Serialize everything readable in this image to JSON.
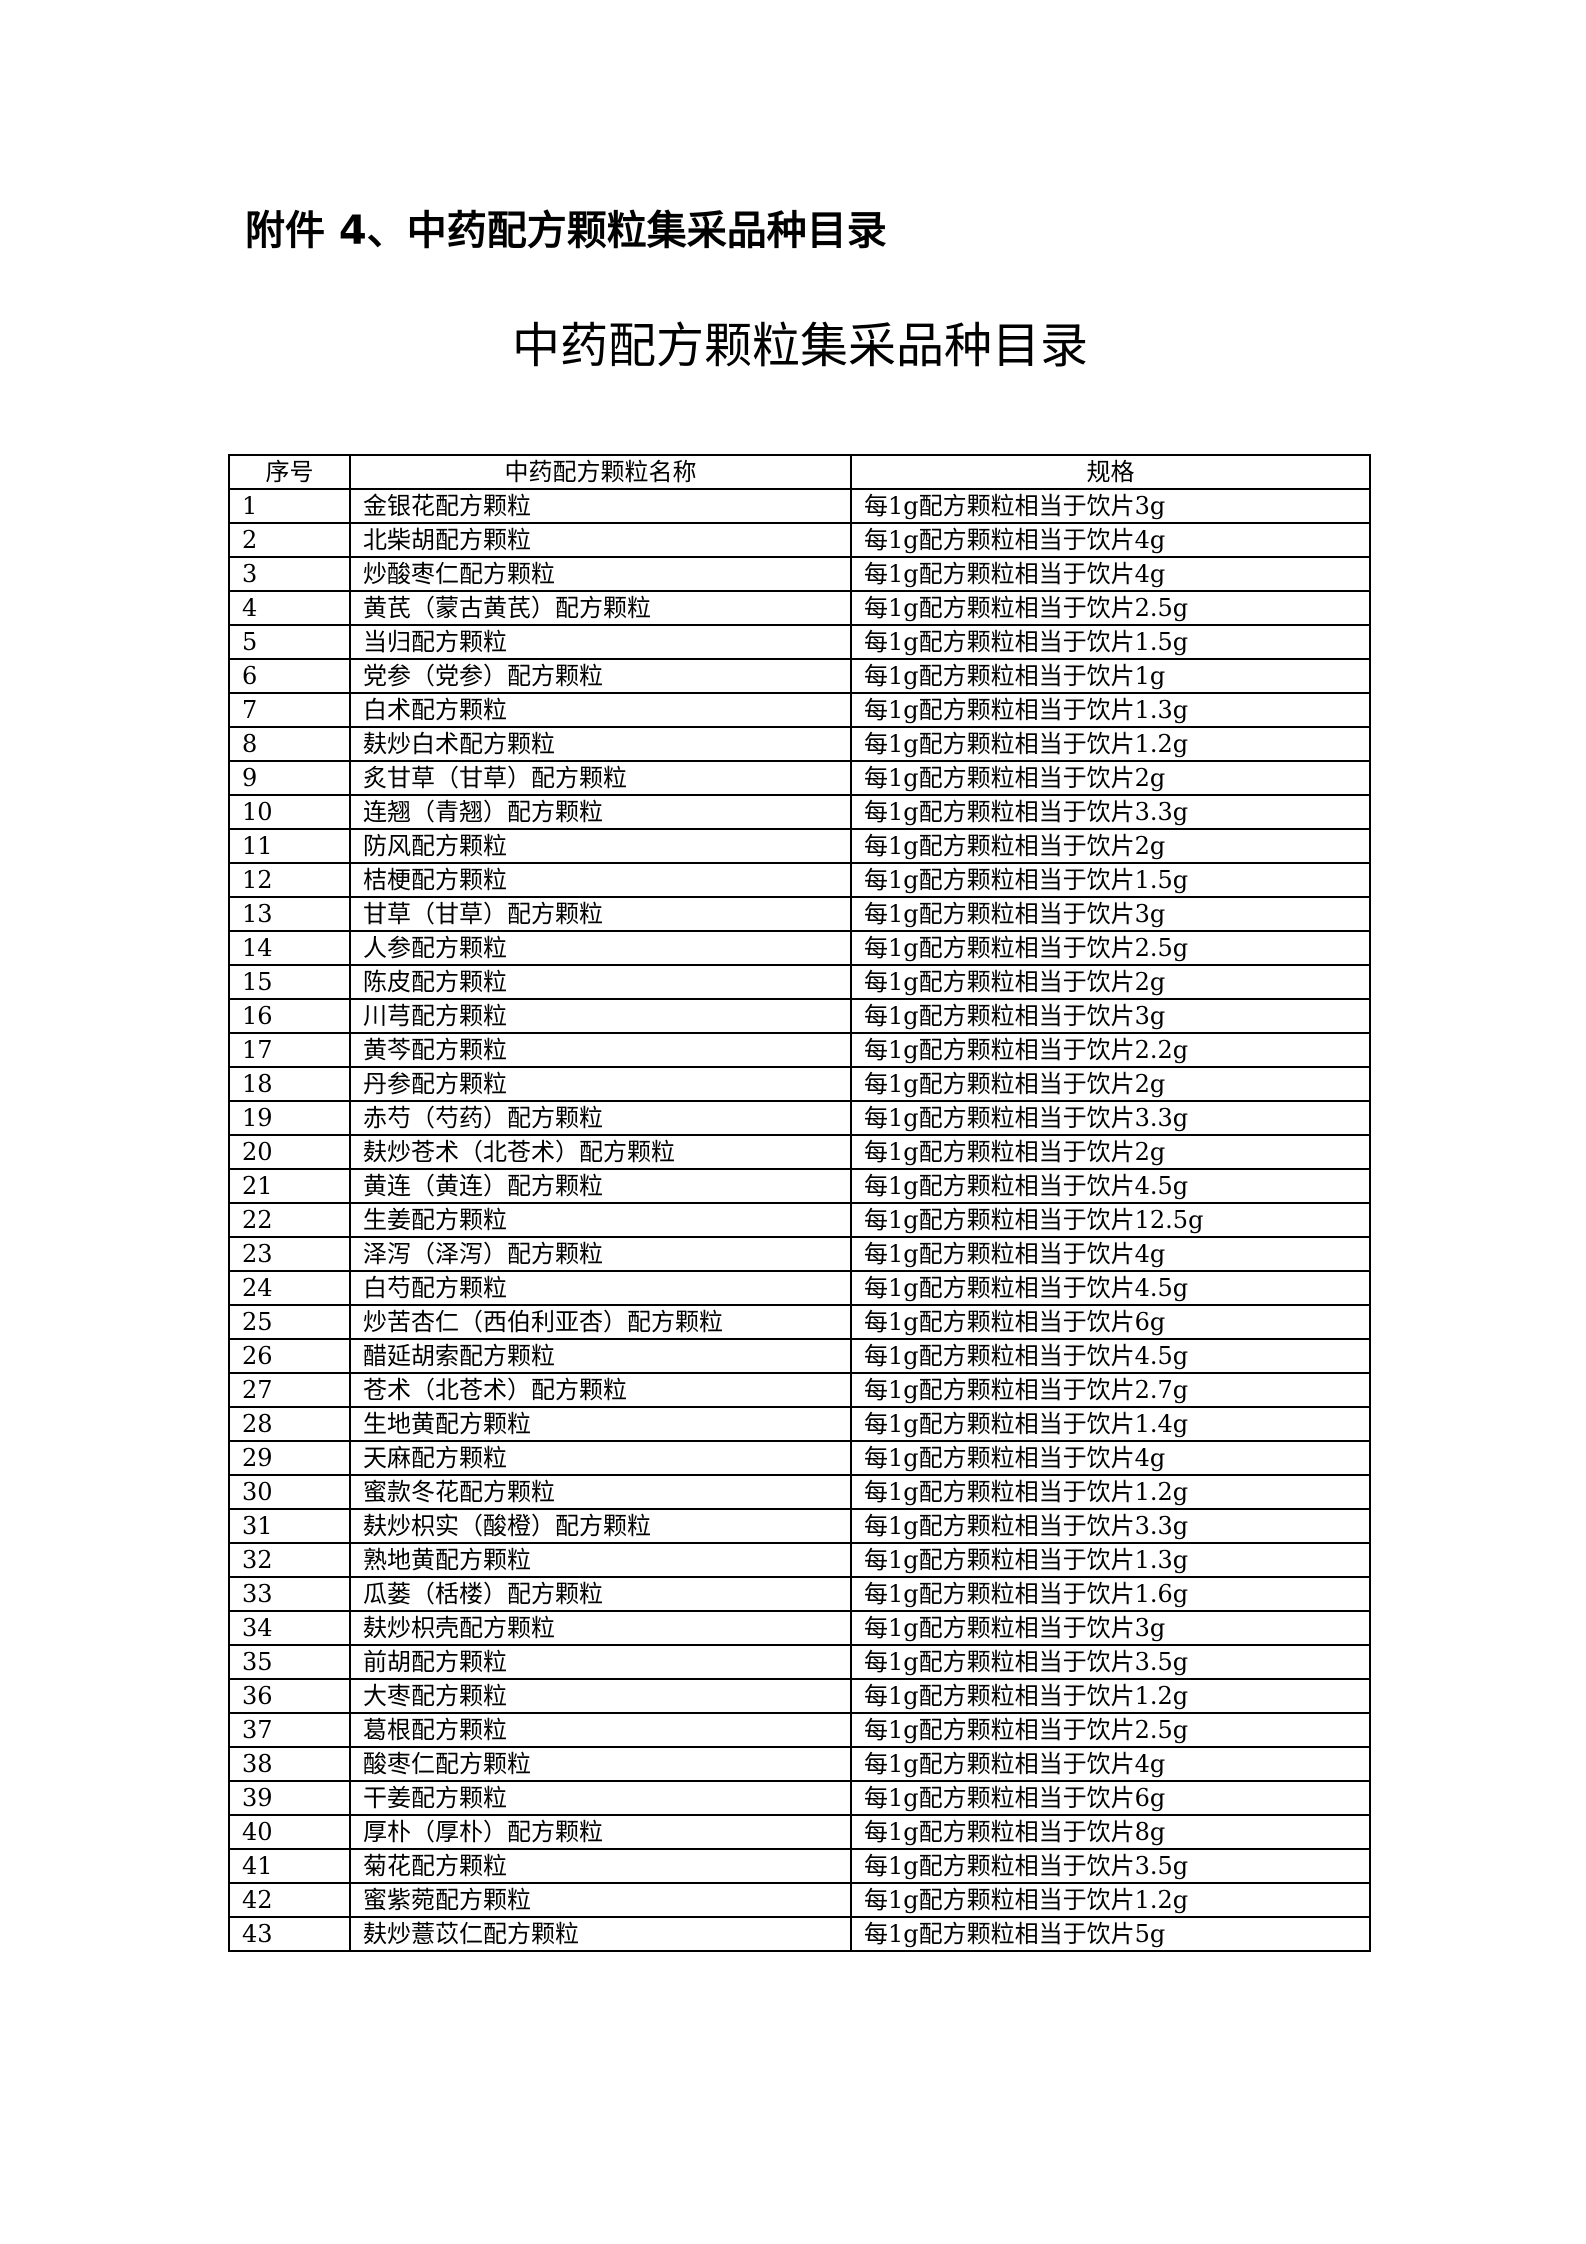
{
  "attachment_heading": "附件 4、中药配方颗粒集采品种目录",
  "title": "中药配方颗粒集采品种目录",
  "table": {
    "headers": [
      "序号",
      "中药配方颗粒名称",
      "规格"
    ],
    "rows": [
      [
        "1",
        "金银花配方颗粒",
        "每1g配方颗粒相当于饮片3g"
      ],
      [
        "2",
        "北柴胡配方颗粒",
        "每1g配方颗粒相当于饮片4g"
      ],
      [
        "3",
        "炒酸枣仁配方颗粒",
        "每1g配方颗粒相当于饮片4g"
      ],
      [
        "4",
        "黄芪（蒙古黄芪）配方颗粒",
        "每1g配方颗粒相当于饮片2.5g"
      ],
      [
        "5",
        "当归配方颗粒",
        "每1g配方颗粒相当于饮片1.5g"
      ],
      [
        "6",
        "党参（党参）配方颗粒",
        "每1g配方颗粒相当于饮片1g"
      ],
      [
        "7",
        "白术配方颗粒",
        "每1g配方颗粒相当于饮片1.3g"
      ],
      [
        "8",
        "麸炒白术配方颗粒",
        "每1g配方颗粒相当于饮片1.2g"
      ],
      [
        "9",
        "炙甘草（甘草）配方颗粒",
        "每1g配方颗粒相当于饮片2g"
      ],
      [
        "10",
        "连翘（青翘）配方颗粒",
        "每1g配方颗粒相当于饮片3.3g"
      ],
      [
        "11",
        "防风配方颗粒",
        "每1g配方颗粒相当于饮片2g"
      ],
      [
        "12",
        "桔梗配方颗粒",
        "每1g配方颗粒相当于饮片1.5g"
      ],
      [
        "13",
        "甘草（甘草）配方颗粒",
        "每1g配方颗粒相当于饮片3g"
      ],
      [
        "14",
        "人参配方颗粒",
        "每1g配方颗粒相当于饮片2.5g"
      ],
      [
        "15",
        "陈皮配方颗粒",
        "每1g配方颗粒相当于饮片2g"
      ],
      [
        "16",
        "川芎配方颗粒",
        "每1g配方颗粒相当于饮片3g"
      ],
      [
        "17",
        "黄芩配方颗粒",
        "每1g配方颗粒相当于饮片2.2g"
      ],
      [
        "18",
        "丹参配方颗粒",
        "每1g配方颗粒相当于饮片2g"
      ],
      [
        "19",
        "赤芍（芍药）配方颗粒",
        "每1g配方颗粒相当于饮片3.3g"
      ],
      [
        "20",
        "麸炒苍术（北苍术）配方颗粒",
        "每1g配方颗粒相当于饮片2g"
      ],
      [
        "21",
        "黄连（黄连）配方颗粒",
        "每1g配方颗粒相当于饮片4.5g"
      ],
      [
        "22",
        "生姜配方颗粒",
        "每1g配方颗粒相当于饮片12.5g"
      ],
      [
        "23",
        "泽泻（泽泻）配方颗粒",
        "每1g配方颗粒相当于饮片4g"
      ],
      [
        "24",
        "白芍配方颗粒",
        "每1g配方颗粒相当于饮片4.5g"
      ],
      [
        "25",
        "炒苦杏仁（西伯利亚杏）配方颗粒",
        "每1g配方颗粒相当于饮片6g"
      ],
      [
        "26",
        "醋延胡索配方颗粒",
        "每1g配方颗粒相当于饮片4.5g"
      ],
      [
        "27",
        "苍术（北苍术）配方颗粒",
        "每1g配方颗粒相当于饮片2.7g"
      ],
      [
        "28",
        "生地黄配方颗粒",
        "每1g配方颗粒相当于饮片1.4g"
      ],
      [
        "29",
        "天麻配方颗粒",
        "每1g配方颗粒相当于饮片4g"
      ],
      [
        "30",
        "蜜款冬花配方颗粒",
        "每1g配方颗粒相当于饮片1.2g"
      ],
      [
        "31",
        "麸炒枳实（酸橙）配方颗粒",
        "每1g配方颗粒相当于饮片3.3g"
      ],
      [
        "32",
        "熟地黄配方颗粒",
        "每1g配方颗粒相当于饮片1.3g"
      ],
      [
        "33",
        "瓜蒌（栝楼）配方颗粒",
        "每1g配方颗粒相当于饮片1.6g"
      ],
      [
        "34",
        "麸炒枳壳配方颗粒",
        "每1g配方颗粒相当于饮片3g"
      ],
      [
        "35",
        "前胡配方颗粒",
        "每1g配方颗粒相当于饮片3.5g"
      ],
      [
        "36",
        "大枣配方颗粒",
        "每1g配方颗粒相当于饮片1.2g"
      ],
      [
        "37",
        "葛根配方颗粒",
        "每1g配方颗粒相当于饮片2.5g"
      ],
      [
        "38",
        "酸枣仁配方颗粒",
        "每1g配方颗粒相当于饮片4g"
      ],
      [
        "39",
        "干姜配方颗粒",
        "每1g配方颗粒相当于饮片6g"
      ],
      [
        "40",
        "厚朴（厚朴）配方颗粒",
        "每1g配方颗粒相当于饮片8g"
      ],
      [
        "41",
        "菊花配方颗粒",
        "每1g配方颗粒相当于饮片3.5g"
      ],
      [
        "42",
        "蜜紫菀配方颗粒",
        "每1g配方颗粒相当于饮片1.2g"
      ],
      [
        "43",
        "麸炒薏苡仁配方颗粒",
        "每1g配方颗粒相当于饮片5g"
      ]
    ]
  }
}
